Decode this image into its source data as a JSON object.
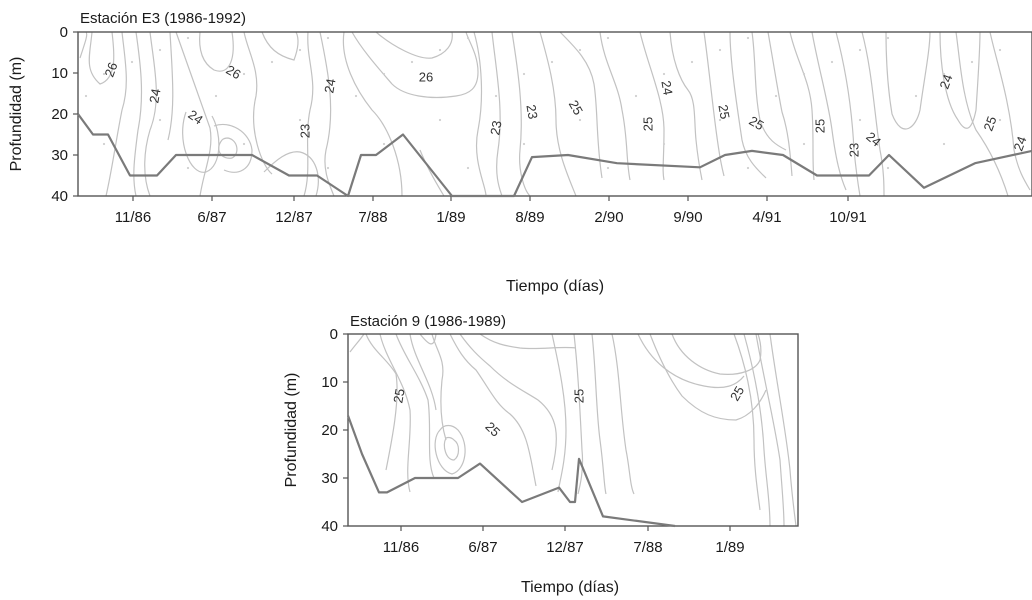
{
  "chart_data": [
    {
      "type": "contour",
      "title": "Estación E3 (1986-1992)",
      "xlabel": "Tiempo (días)",
      "ylabel": "Profundidad (m)",
      "ylim": [
        40,
        0
      ],
      "yticks": [
        "0",
        "10",
        "20",
        "30",
        "40"
      ],
      "xticks": [
        "11/86",
        "6/87",
        "12/87",
        "7/88",
        "1/89",
        "8/89",
        "2/90",
        "9/90",
        "4/91",
        "10/91"
      ],
      "contour_labels": [
        "26",
        "24",
        "26",
        "24",
        "24",
        "26",
        "23",
        "23",
        "25",
        "25",
        "24",
        "25",
        "24",
        "25",
        "25",
        "23",
        "24",
        "25",
        "24",
        "23"
      ],
      "bottom_depth": [
        20,
        25,
        25,
        35,
        35,
        30,
        30,
        30,
        35,
        35,
        40,
        30,
        30,
        25,
        40,
        40,
        30.5,
        30,
        32,
        33,
        30,
        29,
        30,
        35,
        35,
        35,
        30,
        38,
        32,
        29
      ]
    },
    {
      "type": "contour",
      "title": "Estación 9 (1986-1989)",
      "xlabel": "Tiempo (días)",
      "ylabel": "Profundidad (m)",
      "ylim": [
        40,
        0
      ],
      "yticks": [
        "0",
        "10",
        "20",
        "30",
        "40"
      ],
      "xticks": [
        "11/86",
        "6/87",
        "12/87",
        "7/88",
        "1/89"
      ],
      "contour_labels": [
        "25",
        "25",
        "25",
        "25"
      ],
      "bottom_depth": [
        17,
        25,
        33,
        33,
        30,
        30,
        27,
        35,
        32,
        35,
        35,
        26,
        38,
        40
      ]
    }
  ]
}
